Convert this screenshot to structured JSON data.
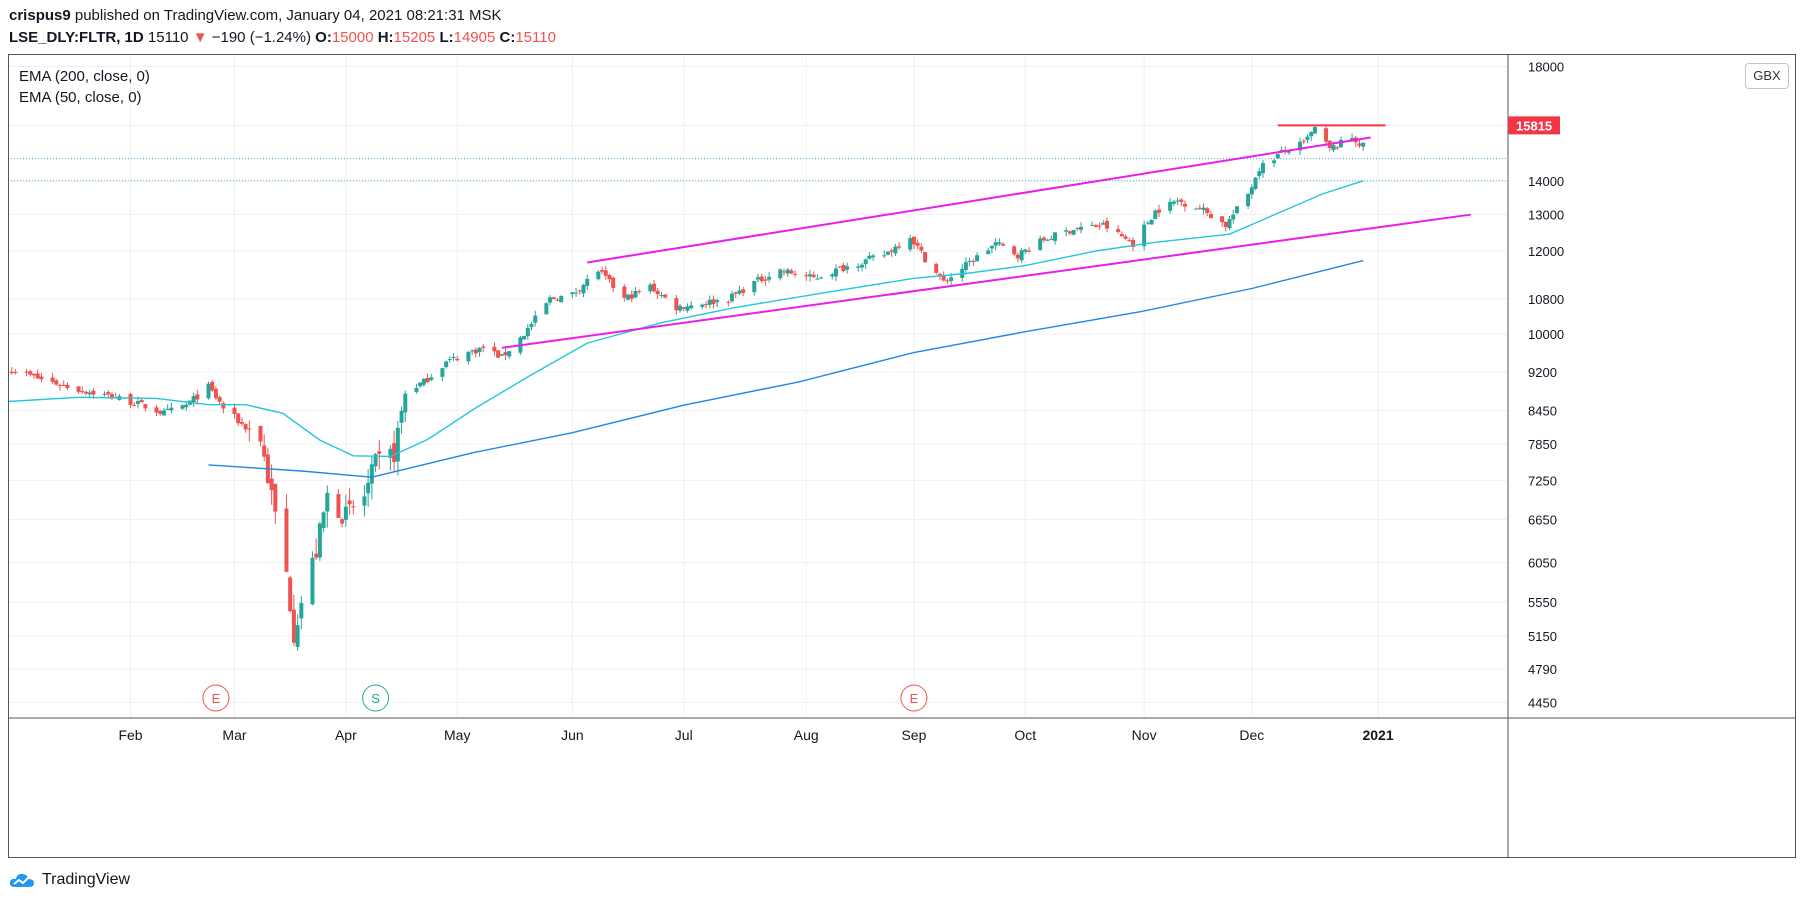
{
  "header": {
    "author": "crispus9",
    "published": "published on TradingView.com, January 04, 2021 08:21:31 MSK"
  },
  "symbol": {
    "name": "LSE_DLY:FLTR, 1D",
    "last": "15110",
    "arrow": "▼",
    "change": "−190 (−1.24%)",
    "o_label": "O:",
    "o": "15000",
    "h_label": "H:",
    "h": "15205",
    "l_label": "L:",
    "l": "14905",
    "c_label": "C:",
    "c": "15110"
  },
  "legend": [
    "EMA (200, close, 0)",
    "EMA (50, close, 0)"
  ],
  "currency": "GBX",
  "footer": {
    "brand": "TradingView"
  },
  "colors": {
    "up": "#26a69a",
    "down": "#ef5350",
    "ema50": "#26c6da",
    "ema200": "#1e88e5",
    "channel": "#e91ee9",
    "resistance": "#f23645",
    "grid": "#eef0f3"
  },
  "chart_data": {
    "type": "candlestick",
    "y_scale": "log",
    "ylim": [
      4300,
      18500
    ],
    "xlim": [
      "2020-01-01",
      "2021-02-08"
    ],
    "y_ticks": [
      18000,
      15815,
      14000,
      13000,
      12000,
      10800,
      10000,
      9200,
      8450,
      7850,
      7250,
      6650,
      6050,
      5550,
      5150,
      4790,
      4450
    ],
    "x_ticks": [
      {
        "label": "Feb",
        "date": "2020-02-03"
      },
      {
        "label": "Mar",
        "date": "2020-03-02"
      },
      {
        "label": "Apr",
        "date": "2020-04-01"
      },
      {
        "label": "May",
        "date": "2020-05-01"
      },
      {
        "label": "Jun",
        "date": "2020-06-01"
      },
      {
        "label": "Jul",
        "date": "2020-07-01"
      },
      {
        "label": "Aug",
        "date": "2020-08-03"
      },
      {
        "label": "Sep",
        "date": "2020-09-01"
      },
      {
        "label": "Oct",
        "date": "2020-10-01"
      },
      {
        "label": "Nov",
        "date": "2020-11-02"
      },
      {
        "label": "Dec",
        "date": "2020-12-01"
      },
      {
        "label": "2021",
        "date": "2021-01-04"
      }
    ],
    "price_label": {
      "value": 15815,
      "color": "#f23645"
    },
    "horizontal_levels": [
      14700,
      14000
    ],
    "price_path": [
      [
        "2020-01-02",
        9250
      ],
      [
        "2020-01-10",
        9050
      ],
      [
        "2020-01-20",
        8850
      ],
      [
        "2020-01-30",
        8700
      ],
      [
        "2020-02-06",
        8550
      ],
      [
        "2020-02-12",
        8400
      ],
      [
        "2020-02-18",
        8550
      ],
      [
        "2020-02-24",
        8900
      ],
      [
        "2020-02-28",
        8500
      ],
      [
        "2020-03-04",
        8200
      ],
      [
        "2020-03-09",
        7950
      ],
      [
        "2020-03-12",
        7000
      ],
      [
        "2020-03-16",
        5900
      ],
      [
        "2020-03-18",
        5200
      ],
      [
        "2020-03-20",
        5550
      ],
      [
        "2020-03-24",
        6200
      ],
      [
        "2020-03-27",
        7000
      ],
      [
        "2020-04-01",
        6700
      ],
      [
        "2020-04-06",
        7000
      ],
      [
        "2020-04-09",
        7500
      ],
      [
        "2020-04-14",
        7700
      ],
      [
        "2020-04-17",
        8800
      ],
      [
        "2020-04-22",
        9000
      ],
      [
        "2020-04-28",
        9400
      ],
      [
        "2020-05-04",
        9600
      ],
      [
        "2020-05-08",
        9700
      ],
      [
        "2020-05-13",
        9500
      ],
      [
        "2020-05-19",
        10000
      ],
      [
        "2020-05-26",
        10800
      ],
      [
        "2020-06-01",
        10900
      ],
      [
        "2020-06-08",
        11500
      ],
      [
        "2020-06-15",
        10800
      ],
      [
        "2020-06-22",
        11100
      ],
      [
        "2020-06-29",
        10600
      ],
      [
        "2020-07-06",
        10700
      ],
      [
        "2020-07-13",
        10800
      ],
      [
        "2020-07-20",
        11200
      ],
      [
        "2020-07-27",
        11500
      ],
      [
        "2020-08-05",
        11300
      ],
      [
        "2020-08-14",
        11600
      ],
      [
        "2020-08-24",
        11900
      ],
      [
        "2020-08-31",
        12400
      ],
      [
        "2020-09-04",
        11800
      ],
      [
        "2020-09-09",
        11200
      ],
      [
        "2020-09-16",
        11700
      ],
      [
        "2020-09-23",
        12200
      ],
      [
        "2020-09-29",
        11900
      ],
      [
        "2020-10-06",
        12300
      ],
      [
        "2020-10-14",
        12600
      ],
      [
        "2020-10-22",
        12700
      ],
      [
        "2020-10-30",
        12200
      ],
      [
        "2020-11-05",
        13100
      ],
      [
        "2020-11-11",
        13400
      ],
      [
        "2020-11-17",
        13200
      ],
      [
        "2020-11-24",
        12700
      ],
      [
        "2020-11-30",
        13600
      ],
      [
        "2020-12-03",
        14400
      ],
      [
        "2020-12-09",
        14900
      ],
      [
        "2020-12-15",
        15200
      ],
      [
        "2020-12-18",
        15700
      ],
      [
        "2020-12-22",
        15000
      ],
      [
        "2020-12-28",
        15400
      ],
      [
        "2020-12-31",
        15110
      ]
    ],
    "ema50": [
      [
        "2020-01-01",
        8620
      ],
      [
        "2020-01-20",
        8700
      ],
      [
        "2020-02-10",
        8680
      ],
      [
        "2020-02-24",
        8560
      ],
      [
        "2020-03-05",
        8560
      ],
      [
        "2020-03-15",
        8400
      ],
      [
        "2020-03-25",
        7920
      ],
      [
        "2020-04-03",
        7650
      ],
      [
        "2020-04-13",
        7640
      ],
      [
        "2020-04-23",
        7930
      ],
      [
        "2020-05-06",
        8500
      ],
      [
        "2020-05-20",
        9100
      ],
      [
        "2020-06-05",
        9800
      ],
      [
        "2020-06-25",
        10250
      ],
      [
        "2020-07-15",
        10600
      ],
      [
        "2020-08-10",
        10980
      ],
      [
        "2020-09-01",
        11300
      ],
      [
        "2020-09-15",
        11420
      ],
      [
        "2020-10-01",
        11620
      ],
      [
        "2020-10-20",
        12000
      ],
      [
        "2020-11-05",
        12230
      ],
      [
        "2020-11-25",
        12450
      ],
      [
        "2020-12-05",
        12900
      ],
      [
        "2020-12-20",
        13600
      ],
      [
        "2020-12-31",
        14000
      ]
    ],
    "ema200": [
      [
        "2020-02-24",
        7500
      ],
      [
        "2020-03-20",
        7400
      ],
      [
        "2020-04-08",
        7300
      ],
      [
        "2020-05-05",
        7700
      ],
      [
        "2020-06-01",
        8050
      ],
      [
        "2020-07-01",
        8550
      ],
      [
        "2020-08-01",
        9000
      ],
      [
        "2020-09-01",
        9600
      ],
      [
        "2020-10-01",
        10050
      ],
      [
        "2020-11-01",
        10500
      ],
      [
        "2020-12-01",
        11050
      ],
      [
        "2020-12-31",
        11750
      ]
    ],
    "drawings": [
      {
        "type": "trendline",
        "from": [
          "2020-06-05",
          11700
        ],
        "to": [
          "2021-01-02",
          15400
        ],
        "color": "#e91ee9"
      },
      {
        "type": "trendline",
        "from": [
          "2020-05-13",
          9700
        ],
        "to": [
          "2021-01-29",
          13000
        ],
        "color": "#e91ee9"
      },
      {
        "type": "hline",
        "from": [
          "2020-12-08",
          15815
        ],
        "to": [
          "2021-01-06",
          15815
        ],
        "color": "#f23645"
      }
    ],
    "events": [
      {
        "label": "E",
        "date": "2020-02-26",
        "color": "#ef5350"
      },
      {
        "label": "S",
        "date": "2020-04-09",
        "color": "#26a69a"
      },
      {
        "label": "E",
        "date": "2020-09-01",
        "color": "#ef5350"
      }
    ]
  }
}
